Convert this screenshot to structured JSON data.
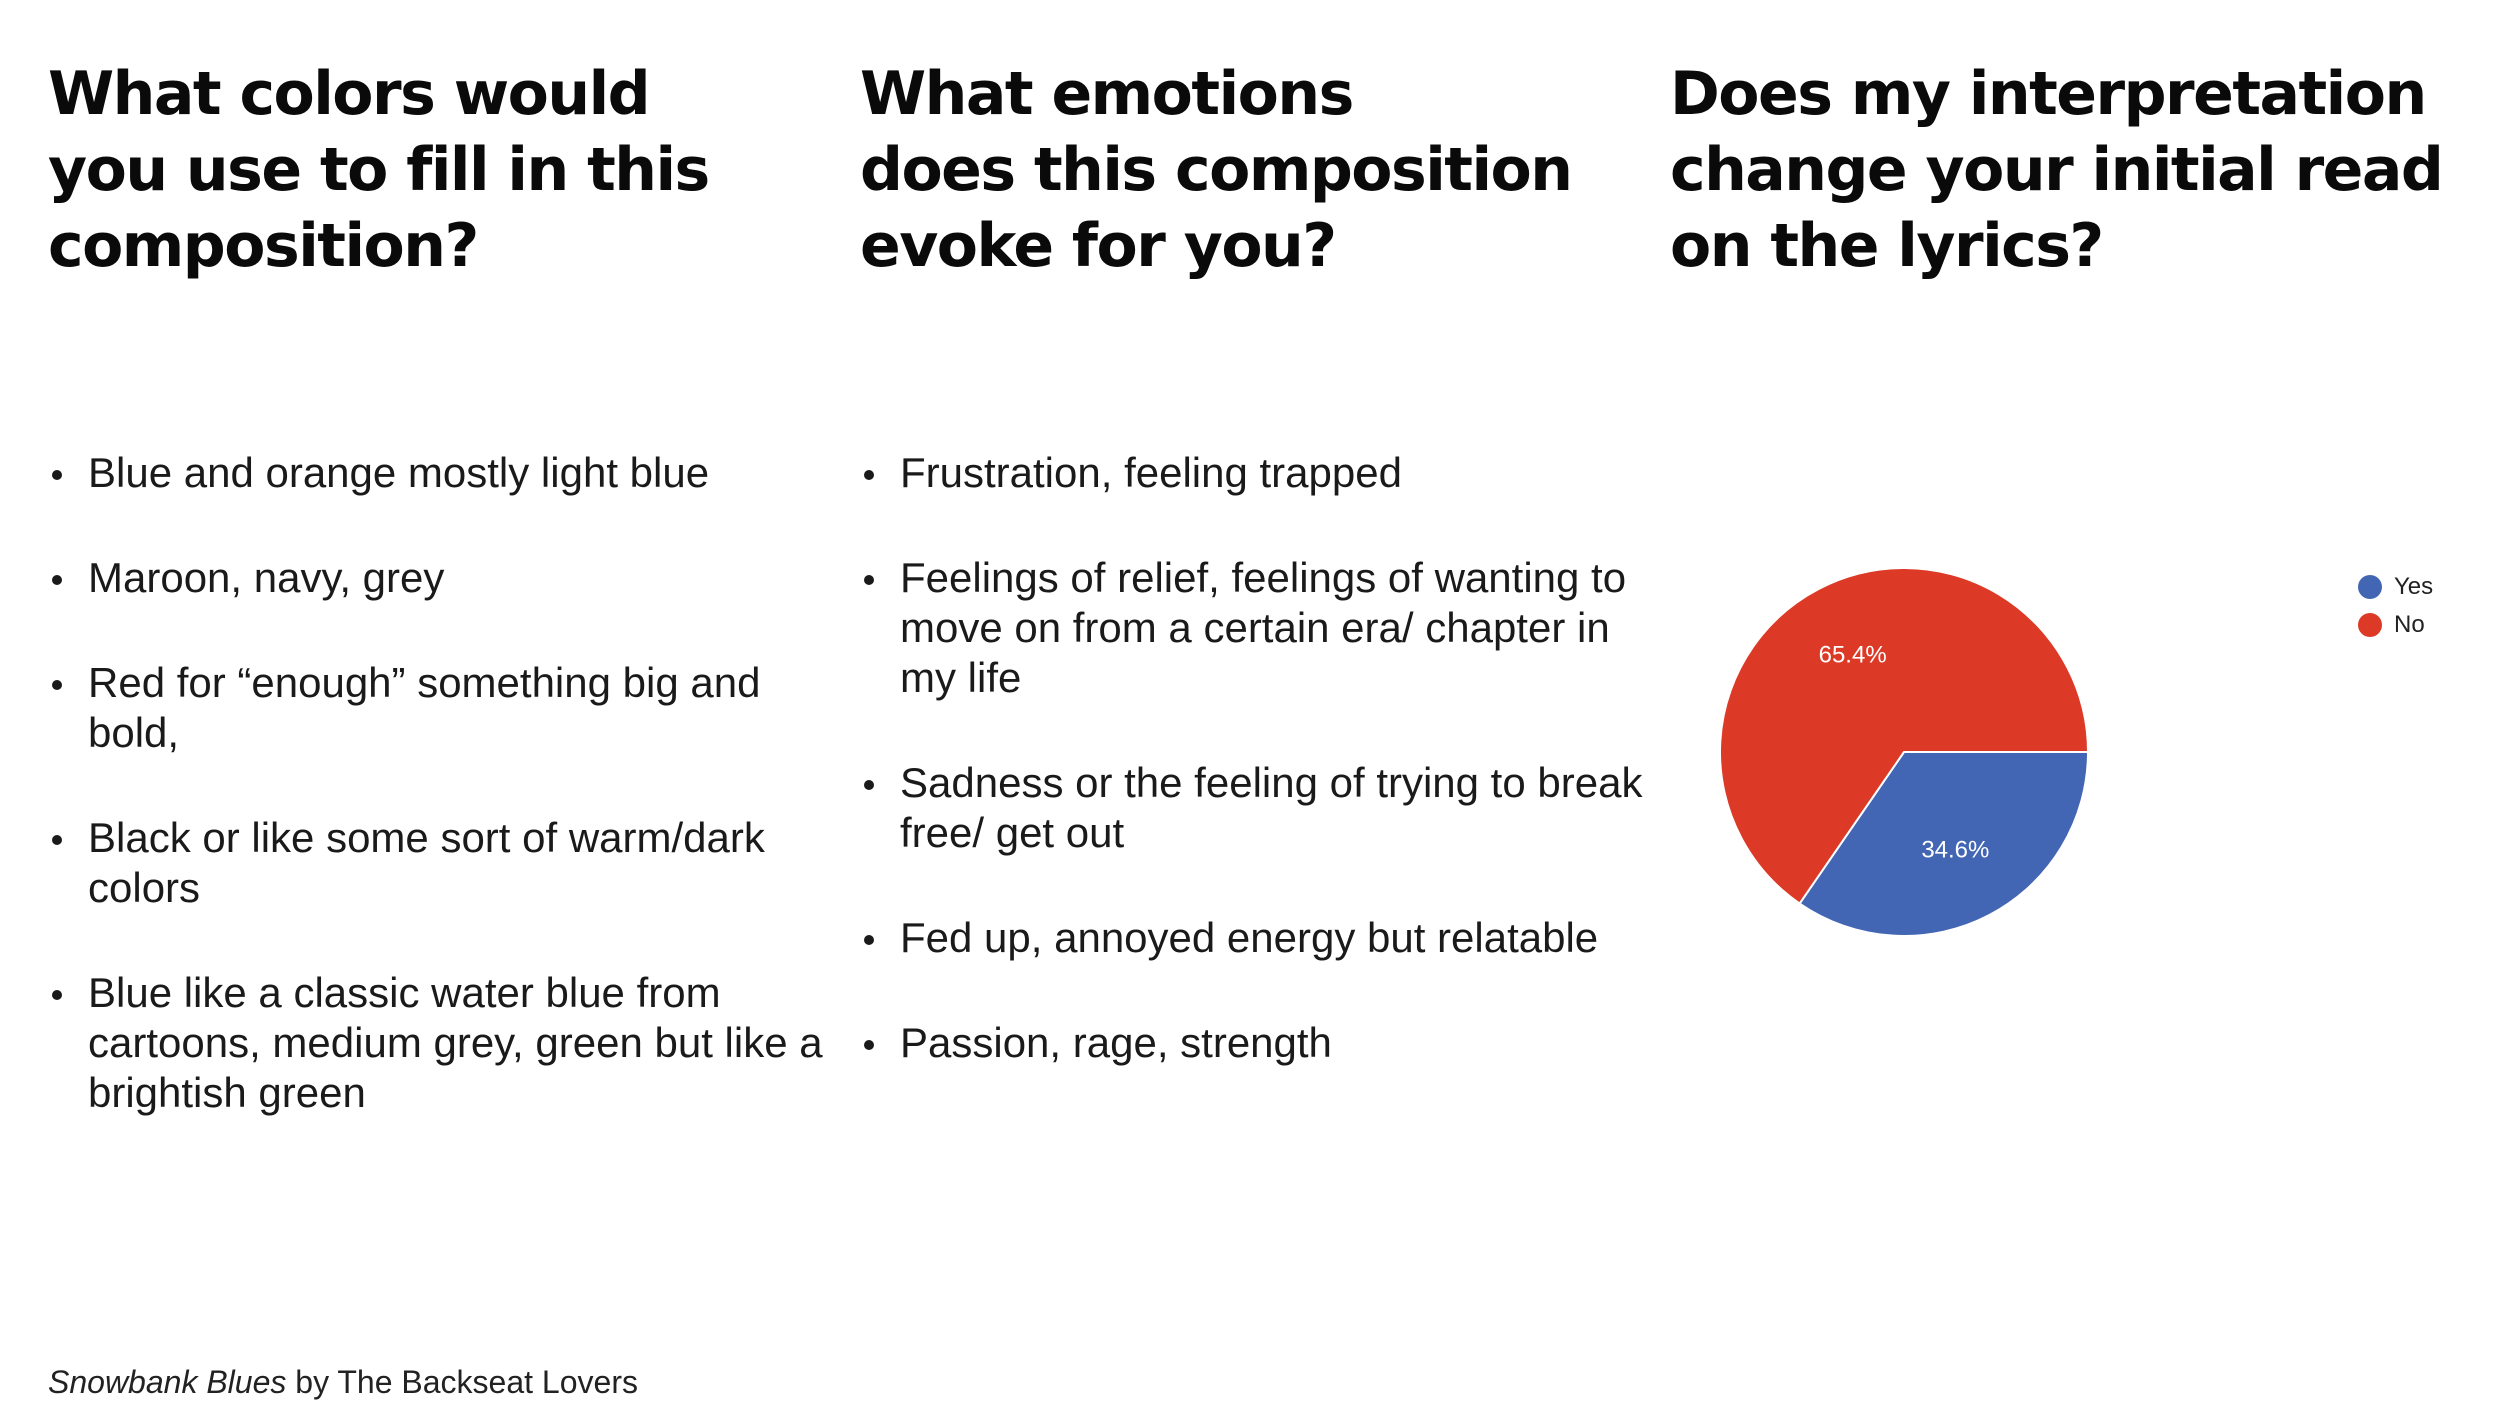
{
  "columns": [
    {
      "heading": "What colors would\nyou use to fill in this\ncomposition?",
      "bullets": [
        "Blue and orange mostly light blue",
        "Maroon, navy, grey",
        "Red for “enough” something big and bold,",
        "Black or like some sort of warm/dark colors",
        "Blue like a classic water blue from cartoons, medium grey, green but like a brightish green"
      ]
    },
    {
      "heading": "What emotions\ndoes this composition\nevoke for you?",
      "bullets": [
        "Frustration, feeling trapped",
        "Feelings of relief, feelings of wanting to move on from a certain era/ chapter in my life",
        "Sadness or the feeling of trying to break free/ get out",
        "Fed up, annoyed energy but relatable",
        "Passion, rage, strength"
      ]
    },
    {
      "heading": "Does my interpretation\nchange your initial read\non the lyrics?"
    }
  ],
  "chart_data": {
    "type": "pie",
    "title": "",
    "legend_position": "right",
    "slices": [
      {
        "label": "Yes",
        "value": 34.6,
        "display": "34.6%",
        "color": "#4266b3"
      },
      {
        "label": "No",
        "value": 65.4,
        "display": "65.4%",
        "color": "#dc3a26"
      }
    ]
  },
  "caption": {
    "title_italic": "Snowbank Blues",
    "rest": " by The Backseat Lovers"
  }
}
